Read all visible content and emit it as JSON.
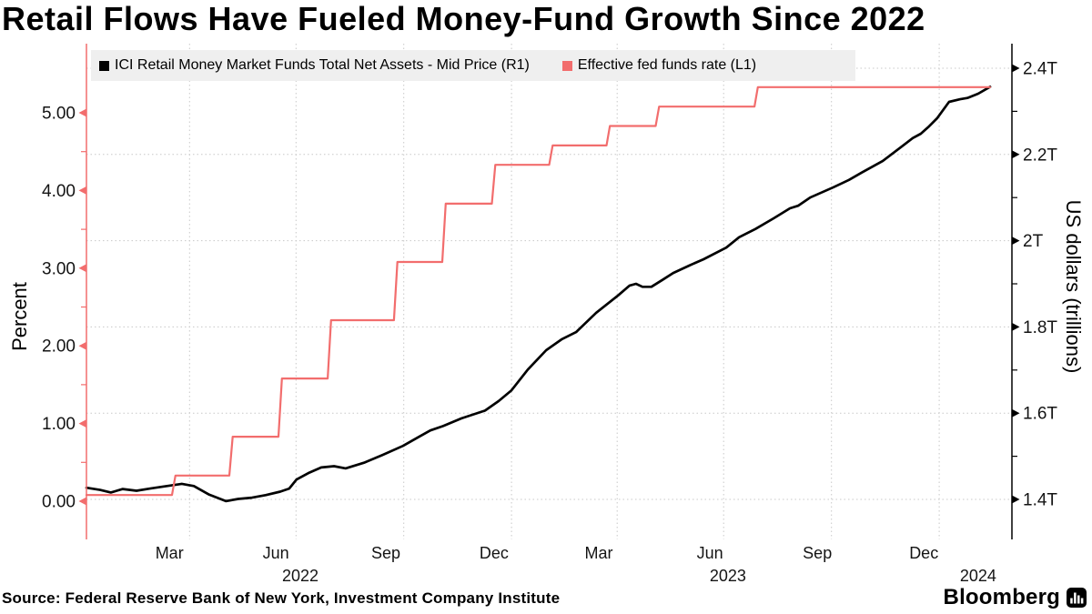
{
  "title": "Retail Flows Have Fueled Money-Fund Growth Since 2022",
  "source_line": "Source: Federal Reserve Bank of New York, Investment Company Institute",
  "branding": {
    "wordmark": "Bloomberg",
    "logo_icon": "bloomberg-bars-icon"
  },
  "colors": {
    "fed_red": "#f26d6d",
    "assets_black": "#000000",
    "legend_bg": "#efefef",
    "gridline": "#c8c8c8"
  },
  "legend": {
    "items": [
      {
        "label": "ICI Retail Money Market Funds Total Net Assets - Mid Price (R1)",
        "swatch": "#000000"
      },
      {
        "label": "Effective fed funds rate  (L1)",
        "swatch": "#f26d6d"
      }
    ]
  },
  "chart_data": {
    "type": "line",
    "title": "Retail Flows Have Fueled Money-Fund Growth Since 2022",
    "x_axis": {
      "domain": [
        2022.006,
        2024.17
      ],
      "gridlines": [
        2022.247,
        2022.496,
        2022.748,
        2023.0,
        2023.247,
        2023.496,
        2023.748,
        2024.0
      ],
      "month_labels": [
        {
          "x": 2022.2,
          "label": "Mar"
        },
        {
          "x": 2022.449,
          "label": "Jun"
        },
        {
          "x": 2022.706,
          "label": "Sep"
        },
        {
          "x": 2022.959,
          "label": "Dec"
        },
        {
          "x": 2023.204,
          "label": "Mar"
        },
        {
          "x": 2023.464,
          "label": "Jun"
        },
        {
          "x": 2023.715,
          "label": "Sep"
        },
        {
          "x": 2023.964,
          "label": "Dec"
        }
      ],
      "year_labels": [
        {
          "x": 2022.506,
          "label": "2022"
        },
        {
          "x": 2023.506,
          "label": "2023"
        },
        {
          "x": 2024.091,
          "label": "2024"
        }
      ]
    },
    "left_axis": {
      "label": "Percent",
      "color": "#f26d6d",
      "range": [
        0,
        5.9
      ],
      "ticks": [
        {
          "v": 0,
          "label": "0.00"
        },
        {
          "v": 1,
          "label": "1.00"
        },
        {
          "v": 2,
          "label": "2.00"
        },
        {
          "v": 3,
          "label": "3.00"
        },
        {
          "v": 4,
          "label": "4.00"
        },
        {
          "v": 5,
          "label": "5.00"
        }
      ],
      "minor": [
        0.5,
        1.5,
        2.5,
        3.5,
        4.5
      ]
    },
    "right_axis": {
      "label": "US dollars (trillions)",
      "color": "#000000",
      "range": [
        1.3,
        2.41
      ],
      "ticks": [
        {
          "v": 1.4,
          "label": "1.4T"
        },
        {
          "v": 1.6,
          "label": "1.6T"
        },
        {
          "v": 1.8,
          "label": "1.8T"
        },
        {
          "v": 2.0,
          "label": "2T"
        },
        {
          "v": 2.2,
          "label": "2.2T"
        },
        {
          "v": 2.4,
          "label": "2.4T"
        }
      ],
      "minor": [
        1.5,
        1.7,
        1.9,
        2.1,
        2.3
      ]
    },
    "series": [
      {
        "name": "ICI Retail Money Market Funds Total Net Assets - Mid Price",
        "id": "R1",
        "axis": "right",
        "color": "#000000",
        "points": [
          [
            2022.006,
            1.427
          ],
          [
            2022.038,
            1.422
          ],
          [
            2022.063,
            1.416
          ],
          [
            2022.091,
            1.424
          ],
          [
            2022.123,
            1.42
          ],
          [
            2022.155,
            1.425
          ],
          [
            2022.187,
            1.43
          ],
          [
            2022.229,
            1.436
          ],
          [
            2022.257,
            1.431
          ],
          [
            2022.293,
            1.411
          ],
          [
            2022.332,
            1.396
          ],
          [
            2022.361,
            1.401
          ],
          [
            2022.393,
            1.404
          ],
          [
            2022.425,
            1.41
          ],
          [
            2022.459,
            1.418
          ],
          [
            2022.48,
            1.425
          ],
          [
            2022.497,
            1.446
          ],
          [
            2022.527,
            1.462
          ],
          [
            2022.555,
            1.474
          ],
          [
            2022.585,
            1.477
          ],
          [
            2022.612,
            1.472
          ],
          [
            2022.655,
            1.485
          ],
          [
            2022.698,
            1.503
          ],
          [
            2022.746,
            1.524
          ],
          [
            2022.783,
            1.545
          ],
          [
            2022.81,
            1.56
          ],
          [
            2022.84,
            1.57
          ],
          [
            2022.883,
            1.588
          ],
          [
            2022.938,
            1.606
          ],
          [
            2022.97,
            1.628
          ],
          [
            2023.0,
            1.653
          ],
          [
            2023.038,
            1.701
          ],
          [
            2023.081,
            1.746
          ],
          [
            2023.117,
            1.771
          ],
          [
            2023.151,
            1.788
          ],
          [
            2023.198,
            1.833
          ],
          [
            2023.249,
            1.873
          ],
          [
            2023.276,
            1.896
          ],
          [
            2023.291,
            1.9
          ],
          [
            2023.306,
            1.893
          ],
          [
            2023.327,
            1.893
          ],
          [
            2023.353,
            1.909
          ],
          [
            2023.378,
            1.925
          ],
          [
            2023.417,
            1.943
          ],
          [
            2023.449,
            1.957
          ],
          [
            2023.502,
            1.984
          ],
          [
            2023.532,
            2.008
          ],
          [
            2023.57,
            2.027
          ],
          [
            2023.613,
            2.052
          ],
          [
            2023.651,
            2.075
          ],
          [
            2023.67,
            2.081
          ],
          [
            2023.698,
            2.1
          ],
          [
            2023.753,
            2.124
          ],
          [
            2023.789,
            2.141
          ],
          [
            2023.819,
            2.158
          ],
          [
            2023.868,
            2.185
          ],
          [
            2023.917,
            2.222
          ],
          [
            2023.938,
            2.238
          ],
          [
            2023.957,
            2.248
          ],
          [
            2023.974,
            2.263
          ],
          [
            2023.995,
            2.284
          ],
          [
            2024.023,
            2.322
          ],
          [
            2024.049,
            2.328
          ],
          [
            2024.066,
            2.331
          ],
          [
            2024.091,
            2.341
          ],
          [
            2024.119,
            2.357
          ]
        ]
      },
      {
        "name": "Effective fed funds rate",
        "id": "L1",
        "axis": "left",
        "color": "#f26d6d",
        "points": [
          [
            2022.006,
            0.08
          ],
          [
            2022.206,
            0.08
          ],
          [
            2022.214,
            0.33
          ],
          [
            2022.34,
            0.33
          ],
          [
            2022.348,
            0.83
          ],
          [
            2022.455,
            0.83
          ],
          [
            2022.463,
            1.58
          ],
          [
            2022.57,
            1.58
          ],
          [
            2022.578,
            2.33
          ],
          [
            2022.725,
            2.33
          ],
          [
            2022.733,
            3.08
          ],
          [
            2022.838,
            3.08
          ],
          [
            2022.846,
            3.83
          ],
          [
            2022.954,
            3.83
          ],
          [
            2022.962,
            4.33
          ],
          [
            2023.088,
            4.33
          ],
          [
            2023.096,
            4.58
          ],
          [
            2023.222,
            4.58
          ],
          [
            2023.23,
            4.83
          ],
          [
            2023.337,
            4.83
          ],
          [
            2023.345,
            5.08
          ],
          [
            2023.568,
            5.08
          ],
          [
            2023.576,
            5.33
          ],
          [
            2024.119,
            5.33
          ]
        ]
      }
    ]
  }
}
